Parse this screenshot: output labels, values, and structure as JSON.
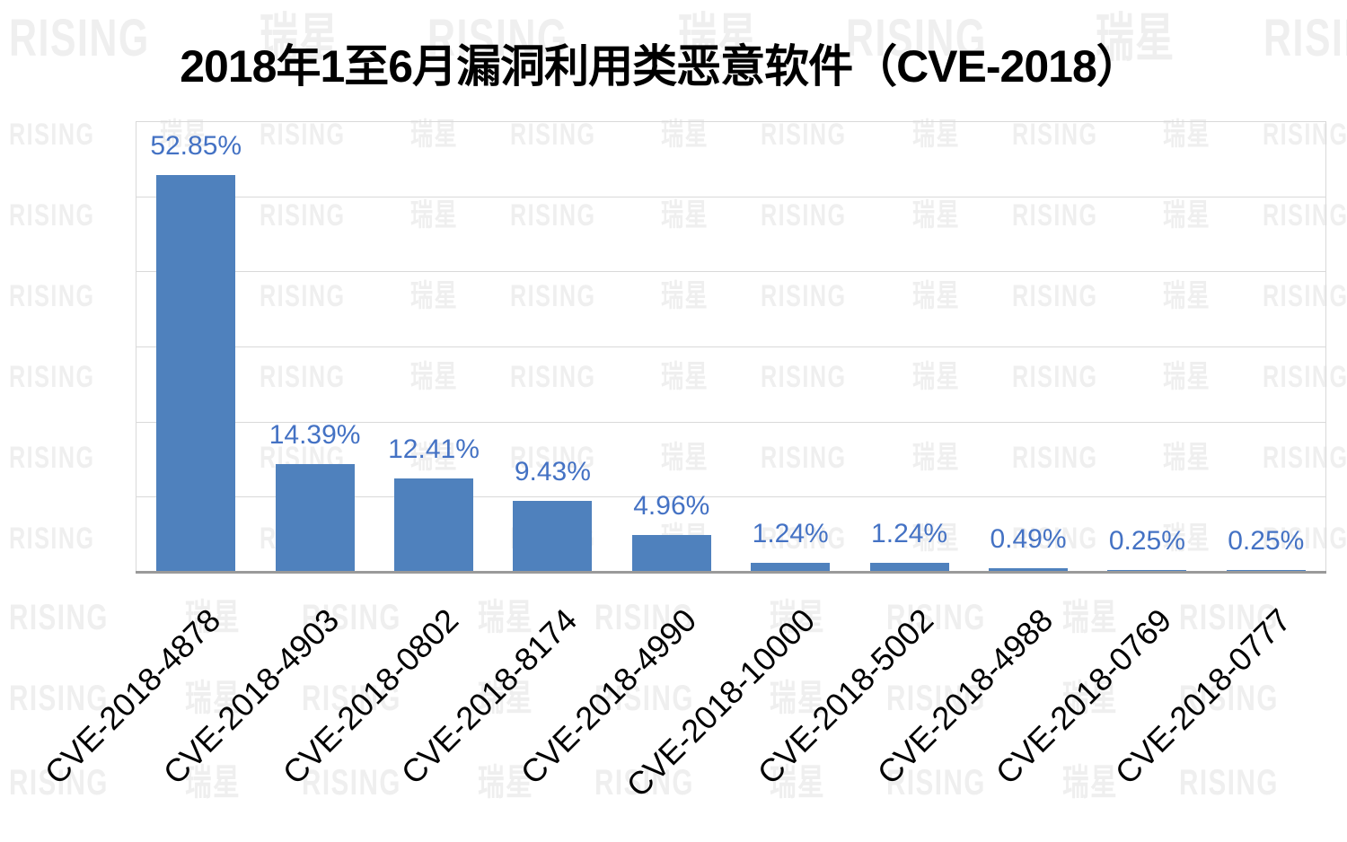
{
  "title": "2018年1至6月漏洞利用类恶意软件（CVE-2018）",
  "watermark": {
    "latin": "RISING",
    "cjk": "瑞星"
  },
  "colors": {
    "background": "#ffffff",
    "bar": "#4f81bd",
    "value_label": "#4472c4",
    "x_label": "#000000",
    "title": "#000000",
    "gridline": "#d9d9d9",
    "axis_line": "#9a9a9a",
    "watermark": "#efefef"
  },
  "chart_data": {
    "type": "bar",
    "title": "2018年1至6月漏洞利用类恶意软件（CVE-2018）",
    "categories": [
      "CVE-2018-4878",
      "CVE-2018-4903",
      "CVE-2018-0802",
      "CVE-2018-8174",
      "CVE-2018-4990",
      "CVE-2018-10000",
      "CVE-2018-5002",
      "CVE-2018-4988",
      "CVE-2018-0769",
      "CVE-2018-0777"
    ],
    "values": [
      52.85,
      14.39,
      12.41,
      9.43,
      4.96,
      1.24,
      1.24,
      0.49,
      0.25,
      0.25
    ],
    "value_labels": [
      "52.85%",
      "14.39%",
      "12.41%",
      "9.43%",
      "4.96%",
      "1.24%",
      "1.24%",
      "0.49%",
      "0.25%",
      "0.25%"
    ],
    "xlabel": "",
    "ylabel": "",
    "ylim": [
      0,
      60
    ],
    "gridline_interval": 10,
    "grid": true,
    "legend": false,
    "x_tick_rotation_deg": 45
  }
}
